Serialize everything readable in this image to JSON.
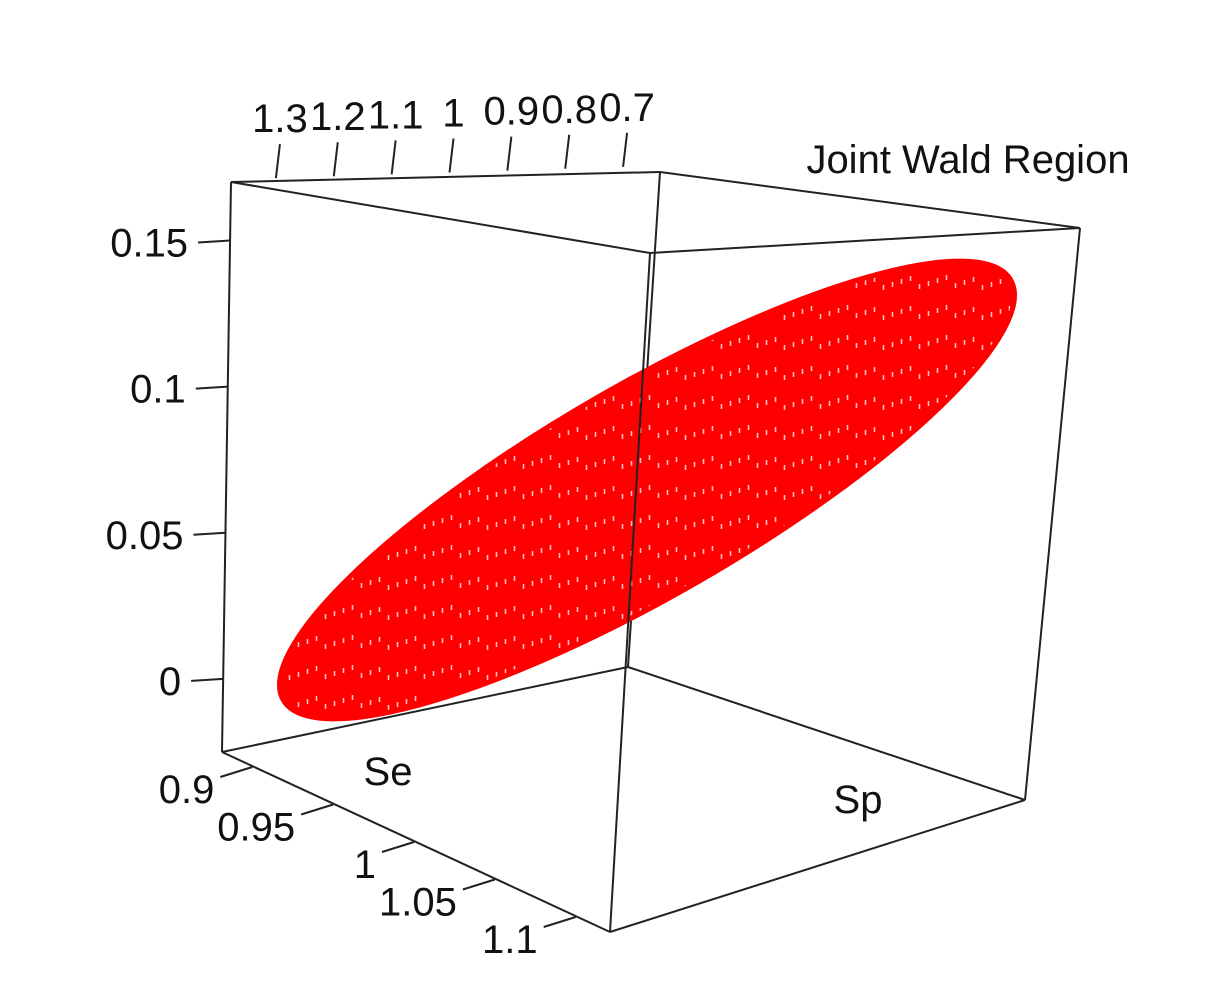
{
  "chart_data": {
    "type": "scatter",
    "projection": "3d",
    "title": "Joint Wald Region",
    "xlabel": "Se",
    "ylabel": "Sp",
    "zlabel": "",
    "x_ticks": [
      "0.9",
      "0.95",
      "1",
      "1.05",
      "1.1"
    ],
    "y_ticks": [
      "1.3",
      "1.2",
      "1.1",
      "1",
      "0.9",
      "0.8",
      "0.7"
    ],
    "z_ticks": [
      "0",
      "0.05",
      "0.1",
      "0.15"
    ],
    "xlim": [
      0.88,
      1.12
    ],
    "ylim": [
      0.65,
      1.35
    ],
    "zlim": [
      -0.025,
      0.17
    ],
    "region": {
      "shape": "filled ellipse",
      "color": "#ff0000",
      "z_range": [
        -0.02,
        0.15
      ],
      "lower_end": {
        "Se": 0.95,
        "Sp": 1.25,
        "z": -0.01
      },
      "upper_end": {
        "Se": 1.05,
        "Sp": 0.75,
        "z": 0.14
      }
    },
    "box_color": "#222222",
    "grid": false,
    "legend": "none"
  }
}
